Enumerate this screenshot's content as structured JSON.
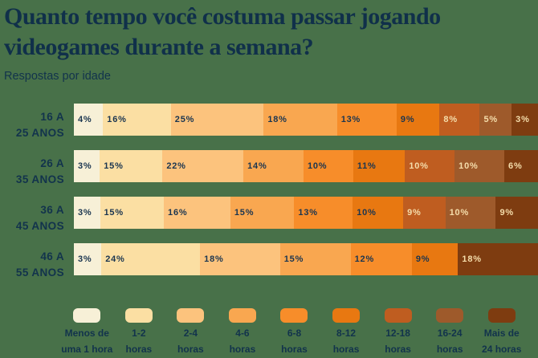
{
  "page": {
    "background": "#487149",
    "title": "Quanto tempo você costuma passar jogando videogames durante a semana?",
    "subtitle": "Respostas por idade"
  },
  "chart_data": {
    "type": "bar",
    "stacked": true,
    "orientation": "horizontal",
    "unit": "%",
    "title": "Quanto tempo você costuma passar jogando videogames durante a semana?",
    "subtitle": "Respostas por idade",
    "legend_position": "bottom",
    "age_groups": [
      "16 a 25 anos",
      "26 a 35 anos",
      "36 a 45 anos",
      "46 a 55 anos"
    ],
    "buckets": [
      "Menos de uma 1 hora",
      "1-2 horas",
      "2-4 horas",
      "4-6 horas",
      "6-8 horas",
      "8-12 horas",
      "12-18 horas",
      "16-24 horas",
      "Mais de 24 horas"
    ],
    "series": [
      {
        "name": "Menos de uma 1 hora",
        "values": [
          4,
          3,
          3,
          3
        ]
      },
      {
        "name": "1-2 horas",
        "values": [
          16,
          15,
          15,
          24
        ]
      },
      {
        "name": "2-4 horas",
        "values": [
          25,
          22,
          16,
          18
        ]
      },
      {
        "name": "4-6 horas",
        "values": [
          18,
          14,
          15,
          15
        ]
      },
      {
        "name": "6-8 horas",
        "values": [
          13,
          10,
          13,
          12
        ]
      },
      {
        "name": "8-12 horas",
        "values": [
          9,
          11,
          10,
          9
        ]
      },
      {
        "name": "12-18 horas",
        "values": [
          8,
          10,
          9,
          0
        ]
      },
      {
        "name": "16-24 horas",
        "values": [
          5,
          10,
          10,
          0
        ]
      },
      {
        "name": "Mais de 24 horas",
        "values": [
          3,
          6,
          9,
          18
        ]
      }
    ],
    "colors": [
      "#F7F0D7",
      "#FBDFA3",
      "#FCC37D",
      "#F9A750",
      "#F78D2A",
      "#E87811",
      "#BF5D20",
      "#9E5A2B",
      "#7E3C10"
    ]
  },
  "text_colors": {
    "navy": "#1A3550",
    "cream": "#F5DDAB"
  },
  "rows": [
    {
      "label_line1": "16 A",
      "label_line2": "25 ANOS",
      "segments": [
        {
          "label": "4%",
          "value": 4,
          "color": 0
        },
        {
          "label": "16%",
          "value": 16,
          "color": 1
        },
        {
          "label": "25%",
          "value": 25,
          "color": 2
        },
        {
          "label": "18%",
          "value": 18,
          "color": 3
        },
        {
          "label": "13%",
          "value": 13,
          "color": 4
        },
        {
          "label": "9%",
          "value": 9,
          "color": 5
        },
        {
          "label": "8%",
          "value": 8,
          "color": 6
        },
        {
          "label": "5%",
          "value": 5,
          "color": 7
        },
        {
          "label": "3%",
          "value": 3,
          "color": 8
        }
      ]
    },
    {
      "label_line1": "26 A",
      "label_line2": "35 ANOS",
      "segments": [
        {
          "label": "3%",
          "value": 3,
          "color": 0
        },
        {
          "label": "15%",
          "value": 15,
          "color": 1
        },
        {
          "label": "22%",
          "value": 22,
          "color": 2
        },
        {
          "label": "14%",
          "value": 14,
          "color": 3
        },
        {
          "label": "10%",
          "value": 10,
          "color": 4
        },
        {
          "label": "11%",
          "value": 11,
          "color": 5
        },
        {
          "label": "10%",
          "value": 10,
          "color": 6
        },
        {
          "label": "10%",
          "value": 10,
          "color": 7
        },
        {
          "label": "6%",
          "value": 6,
          "color": 8
        }
      ]
    },
    {
      "label_line1": "36 A",
      "label_line2": "45 ANOS",
      "segments": [
        {
          "label": "3%",
          "value": 3,
          "color": 0
        },
        {
          "label": "15%",
          "value": 15,
          "color": 1
        },
        {
          "label": "16%",
          "value": 16,
          "color": 2
        },
        {
          "label": "15%",
          "value": 15,
          "color": 3
        },
        {
          "label": "13%",
          "value": 13,
          "color": 4
        },
        {
          "label": "10%",
          "value": 10,
          "color": 5
        },
        {
          "label": "9%",
          "value": 9,
          "color": 6
        },
        {
          "label": "10%",
          "value": 10,
          "color": 7
        },
        {
          "label": "9%",
          "value": 9,
          "color": 8
        }
      ]
    },
    {
      "label_line1": "46 A",
      "label_line2": "55 ANOS",
      "segments": [
        {
          "label": "3%",
          "value": 3,
          "color": 0
        },
        {
          "label": "24%",
          "value": 24,
          "color": 1
        },
        {
          "label": "18%",
          "value": 18,
          "color": 2
        },
        {
          "label": "15%",
          "value": 15,
          "color": 3
        },
        {
          "label": "12%",
          "value": 12,
          "color": 4
        },
        {
          "label": "9%",
          "value": 9,
          "color": 5
        },
        {
          "label": "18%",
          "value": 18,
          "color": 8
        }
      ]
    }
  ],
  "legend": {
    "items": [
      {
        "line1": "Menos de",
        "line2": "uma 1 hora",
        "color": 0
      },
      {
        "line1": "1-2",
        "line2": "horas",
        "color": 1
      },
      {
        "line1": "2-4",
        "line2": "horas",
        "color": 2
      },
      {
        "line1": "4-6",
        "line2": "horas",
        "color": 3
      },
      {
        "line1": "6-8",
        "line2": "horas",
        "color": 4
      },
      {
        "line1": "8-12",
        "line2": "horas",
        "color": 5
      },
      {
        "line1": "12-18",
        "line2": "horas",
        "color": 6
      },
      {
        "line1": "16-24",
        "line2": "horas",
        "color": 7
      },
      {
        "line1": "Mais de",
        "line2": "24 horas",
        "color": 8
      }
    ]
  }
}
